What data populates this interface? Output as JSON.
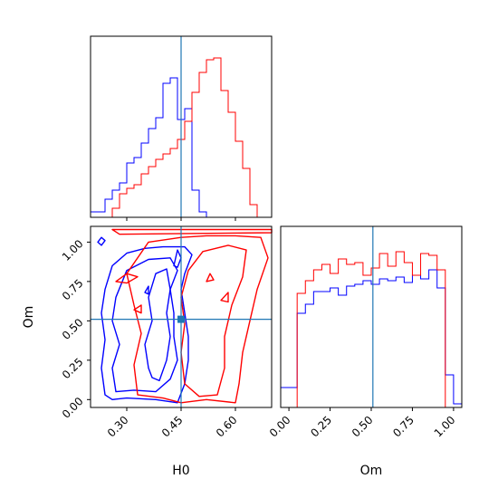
{
  "chart_data": {
    "type": "corner",
    "colors": {
      "series_a": "#0000ff",
      "series_b": "#ff0000",
      "truth": "#1f77b4"
    },
    "params": [
      "H0",
      "Om"
    ],
    "truth": {
      "H0": 0.45,
      "Om": 0.51
    },
    "panels": {
      "h0_hist": {
        "type": "histogram",
        "xlim": [
          0.2,
          0.7
        ],
        "bin_edges": [
          0.2,
          0.22,
          0.24,
          0.26,
          0.28,
          0.3,
          0.32,
          0.34,
          0.36,
          0.38,
          0.4,
          0.42,
          0.44,
          0.46,
          0.48,
          0.5,
          0.52,
          0.54,
          0.56,
          0.58,
          0.6,
          0.62,
          0.64,
          0.66,
          0.68,
          0.7
        ],
        "series": [
          {
            "color": "#0000ff",
            "counts": [
              0.03,
              0.03,
              0.1,
              0.15,
              0.19,
              0.3,
              0.33,
              0.41,
              0.49,
              0.55,
              0.74,
              0.77,
              0.54,
              0.6,
              0.15,
              0.03,
              0,
              0,
              0,
              0,
              0,
              0,
              0,
              0,
              0
            ]
          },
          {
            "color": "#ff0000",
            "counts": [
              0,
              0,
              0,
              0.05,
              0.13,
              0.16,
              0.18,
              0.24,
              0.28,
              0.32,
              0.35,
              0.38,
              0.43,
              0.53,
              0.69,
              0.8,
              0.87,
              0.88,
              0.7,
              0.58,
              0.42,
              0.27,
              0.07,
              0,
              0
            ]
          }
        ],
        "x_ticks": [
          0.3,
          0.45,
          0.6
        ]
      },
      "om_hist": {
        "type": "histogram",
        "xlim": [
          -0.05,
          1.05
        ],
        "bin_edges": [
          -0.05,
          0.0,
          0.05,
          0.1,
          0.15,
          0.2,
          0.25,
          0.3,
          0.35,
          0.4,
          0.45,
          0.5,
          0.55,
          0.6,
          0.65,
          0.7,
          0.75,
          0.8,
          0.85,
          0.9,
          0.95,
          1.0,
          1.05
        ],
        "series": [
          {
            "color": "#0000ff",
            "counts": [
              0.11,
              0.11,
              0.52,
              0.57,
              0.64,
              0.64,
              0.66,
              0.62,
              0.67,
              0.68,
              0.7,
              0.68,
              0.71,
              0.7,
              0.72,
              0.69,
              0.73,
              0.71,
              0.76,
              0.66,
              0.18,
              0.02
            ]
          },
          {
            "color": "#ff0000",
            "counts": [
              0,
              0,
              0.63,
              0.7,
              0.76,
              0.79,
              0.74,
              0.82,
              0.79,
              0.8,
              0.73,
              0.77,
              0.85,
              0.78,
              0.86,
              0.8,
              0.73,
              0.85,
              0.84,
              0.76,
              0,
              0
            ]
          }
        ],
        "x_ticks": [
          "0.00",
          "0.25",
          "0.50",
          "0.75",
          "1.00"
        ]
      },
      "h0_om_contour": {
        "type": "contour",
        "xlim": [
          0.2,
          0.7
        ],
        "ylim": [
          -0.05,
          1.1
        ],
        "x_ticks": [
          "0.30",
          "0.45",
          "0.60"
        ],
        "y_ticks": [
          "0.00",
          "0.25",
          "0.50",
          "0.75",
          "1.00"
        ],
        "contours": [
          {
            "color": "#0000ff",
            "points": [
              [
                0.22,
                1.0
              ],
              [
                0.23,
                1.03
              ],
              [
                0.24,
                1.01
              ],
              [
                0.23,
                0.98
              ]
            ]
          },
          {
            "color": "#0000ff",
            "points": [
              [
                0.24,
                0.03
              ],
              [
                0.23,
                0.2
              ],
              [
                0.24,
                0.38
              ],
              [
                0.23,
                0.55
              ],
              [
                0.24,
                0.7
              ],
              [
                0.26,
                0.85
              ],
              [
                0.3,
                0.93
              ],
              [
                0.35,
                0.96
              ],
              [
                0.4,
                0.97
              ],
              [
                0.46,
                0.97
              ],
              [
                0.48,
                0.92
              ],
              [
                0.46,
                0.8
              ],
              [
                0.45,
                0.7
              ],
              [
                0.46,
                0.55
              ],
              [
                0.47,
                0.4
              ],
              [
                0.47,
                0.25
              ],
              [
                0.46,
                0.1
              ],
              [
                0.44,
                -0.02
              ],
              [
                0.38,
                0.0
              ],
              [
                0.3,
                0.01
              ],
              [
                0.26,
                0.0
              ]
            ]
          },
          {
            "color": "#0000ff",
            "points": [
              [
                0.27,
                0.05
              ],
              [
                0.26,
                0.2
              ],
              [
                0.28,
                0.35
              ],
              [
                0.26,
                0.5
              ],
              [
                0.27,
                0.65
              ],
              [
                0.3,
                0.82
              ],
              [
                0.36,
                0.89
              ],
              [
                0.42,
                0.9
              ],
              [
                0.44,
                0.82
              ],
              [
                0.42,
                0.7
              ],
              [
                0.43,
                0.55
              ],
              [
                0.43,
                0.4
              ],
              [
                0.44,
                0.25
              ],
              [
                0.42,
                0.13
              ],
              [
                0.38,
                0.05
              ],
              [
                0.32,
                0.06
              ]
            ]
          },
          {
            "color": "#0000ff",
            "points": [
              [
                0.36,
                0.2
              ],
              [
                0.35,
                0.35
              ],
              [
                0.37,
                0.5
              ],
              [
                0.36,
                0.65
              ],
              [
                0.38,
                0.8
              ],
              [
                0.41,
                0.83
              ],
              [
                0.42,
                0.7
              ],
              [
                0.41,
                0.55
              ],
              [
                0.42,
                0.4
              ],
              [
                0.41,
                0.25
              ],
              [
                0.39,
                0.12
              ],
              [
                0.37,
                0.14
              ]
            ]
          },
          {
            "color": "#0000ff",
            "points": [
              [
                0.43,
                0.85
              ],
              [
                0.44,
                0.95
              ],
              [
                0.45,
                0.9
              ],
              [
                0.44,
                0.84
              ]
            ]
          },
          {
            "color": "#0000ff",
            "points": [
              [
                0.35,
                0.68
              ],
              [
                0.36,
                0.72
              ],
              [
                0.36,
                0.67
              ]
            ]
          },
          {
            "color": "#ff0000",
            "points": [
              [
                0.26,
                1.08
              ],
              [
                0.7,
                1.08
              ],
              [
                0.7,
                1.06
              ],
              [
                0.28,
                1.05
              ]
            ]
          },
          {
            "color": "#ff0000",
            "points": [
              [
                0.33,
                0.03
              ],
              [
                0.32,
                0.22
              ],
              [
                0.34,
                0.42
              ],
              [
                0.32,
                0.6
              ],
              [
                0.3,
                0.8
              ],
              [
                0.36,
                1.0
              ],
              [
                0.45,
                1.03
              ],
              [
                0.52,
                1.04
              ],
              [
                0.6,
                1.04
              ],
              [
                0.67,
                1.03
              ],
              [
                0.69,
                0.9
              ],
              [
                0.66,
                0.7
              ],
              [
                0.64,
                0.5
              ],
              [
                0.62,
                0.3
              ],
              [
                0.61,
                0.1
              ],
              [
                0.6,
                -0.02
              ],
              [
                0.52,
                0.0
              ],
              [
                0.45,
                -0.02
              ],
              [
                0.4,
                0.01
              ]
            ]
          },
          {
            "color": "#ff0000",
            "points": [
              [
                0.46,
                0.1
              ],
              [
                0.45,
                0.3
              ],
              [
                0.46,
                0.48
              ],
              [
                0.45,
                0.65
              ],
              [
                0.47,
                0.82
              ],
              [
                0.51,
                0.94
              ],
              [
                0.58,
                0.98
              ],
              [
                0.63,
                0.95
              ],
              [
                0.62,
                0.78
              ],
              [
                0.59,
                0.6
              ],
              [
                0.57,
                0.4
              ],
              [
                0.57,
                0.2
              ],
              [
                0.55,
                0.03
              ],
              [
                0.5,
                0.02
              ]
            ]
          },
          {
            "color": "#ff0000",
            "points": [
              [
                0.52,
                0.75
              ],
              [
                0.53,
                0.8
              ],
              [
                0.54,
                0.76
              ]
            ]
          },
          {
            "color": "#ff0000",
            "points": [
              [
                0.56,
                0.63
              ],
              [
                0.58,
                0.68
              ],
              [
                0.58,
                0.62
              ]
            ]
          },
          {
            "color": "#ff0000",
            "points": [
              [
                0.27,
                0.75
              ],
              [
                0.3,
                0.8
              ],
              [
                0.33,
                0.78
              ],
              [
                0.3,
                0.74
              ]
            ]
          },
          {
            "color": "#ff0000",
            "points": [
              [
                0.32,
                0.57
              ],
              [
                0.34,
                0.6
              ],
              [
                0.34,
                0.55
              ]
            ]
          }
        ],
        "truth_marker": [
          0.45,
          0.51
        ]
      }
    },
    "xlabels": [
      "H0",
      "Om"
    ],
    "ylabel": "Om"
  }
}
